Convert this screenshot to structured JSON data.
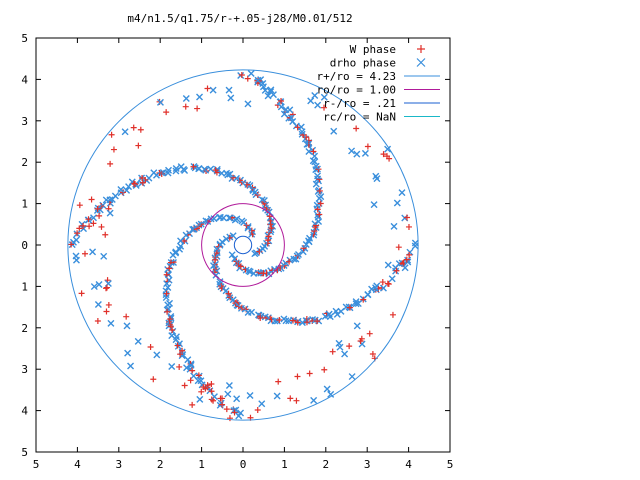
{
  "chart_data": {
    "type": "scatter",
    "title": "m4/n1.5/q1.75/r-+.05-j28/M0.01/512",
    "xlim": [
      -5,
      5
    ],
    "ylim": [
      -5,
      5
    ],
    "x_tick_labels": [
      "5",
      "4",
      "3",
      "2",
      "1",
      "0",
      "1",
      "2",
      "3",
      "4",
      "5"
    ],
    "y_tick_labels": [
      "5",
      "4",
      "3",
      "2",
      "1",
      "0",
      "1",
      "2",
      "3",
      "4",
      "5"
    ],
    "x_ticks": [
      -5,
      -4,
      -3,
      -2,
      -1,
      0,
      1,
      2,
      3,
      4,
      5
    ],
    "y_ticks": [
      5,
      4,
      3,
      2,
      1,
      0,
      -1,
      -2,
      -3,
      -4,
      -5
    ],
    "grid": false,
    "legend_position": "top-right",
    "series": [
      {
        "name": "W phase",
        "marker": "plus",
        "color": "#e0302a"
      },
      {
        "name": "drho phase",
        "marker": "cross",
        "color": "#3a8fdc"
      }
    ],
    "circles": [
      {
        "name": "r+/ro = 4.23",
        "radius": 4.23,
        "color": "#3a8fdc"
      },
      {
        "name": "ro/ro = 1.00",
        "radius": 1.0,
        "color": "#b01a9a"
      },
      {
        "name": "r-/ro = .21",
        "radius": 0.21,
        "color": "#1a5fd0"
      },
      {
        "name": "rc/ro = NaN",
        "radius": null,
        "color": "#1ab8c8"
      }
    ],
    "spiral_arms": 4
  }
}
